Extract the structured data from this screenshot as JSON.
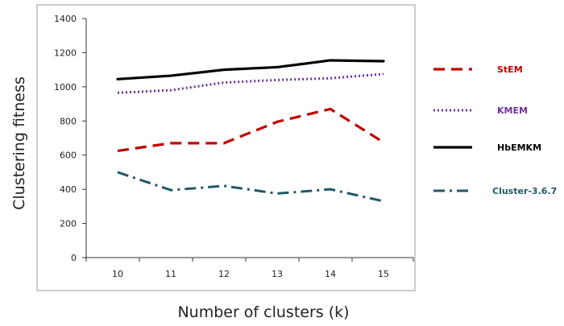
{
  "chart_data": {
    "type": "line",
    "title": "",
    "xlabel": "Number of clusters (k)",
    "ylabel": "Clustering fitness",
    "x": [
      10,
      11,
      12,
      13,
      14,
      15
    ],
    "ylim": [
      0,
      1400
    ],
    "yticks": [
      0,
      200,
      400,
      600,
      800,
      1000,
      1200,
      1400
    ],
    "grid": false,
    "legend_position": "right",
    "series": [
      {
        "name": "StEM",
        "values": [
          625,
          670,
          670,
          795,
          870,
          675
        ],
        "color": "#c00000",
        "style": "dashed"
      },
      {
        "name": "KMEM",
        "values": [
          965,
          980,
          1025,
          1040,
          1050,
          1075
        ],
        "color": "#7030a0",
        "style": "dotted"
      },
      {
        "name": "HbEMKM",
        "values": [
          1045,
          1065,
          1100,
          1115,
          1155,
          1150
        ],
        "color": "#000000",
        "style": "solid"
      },
      {
        "name": "Cluster-3.6.7",
        "values": [
          500,
          395,
          420,
          375,
          400,
          330
        ],
        "color": "#215967",
        "style": "dash-dot"
      }
    ]
  }
}
